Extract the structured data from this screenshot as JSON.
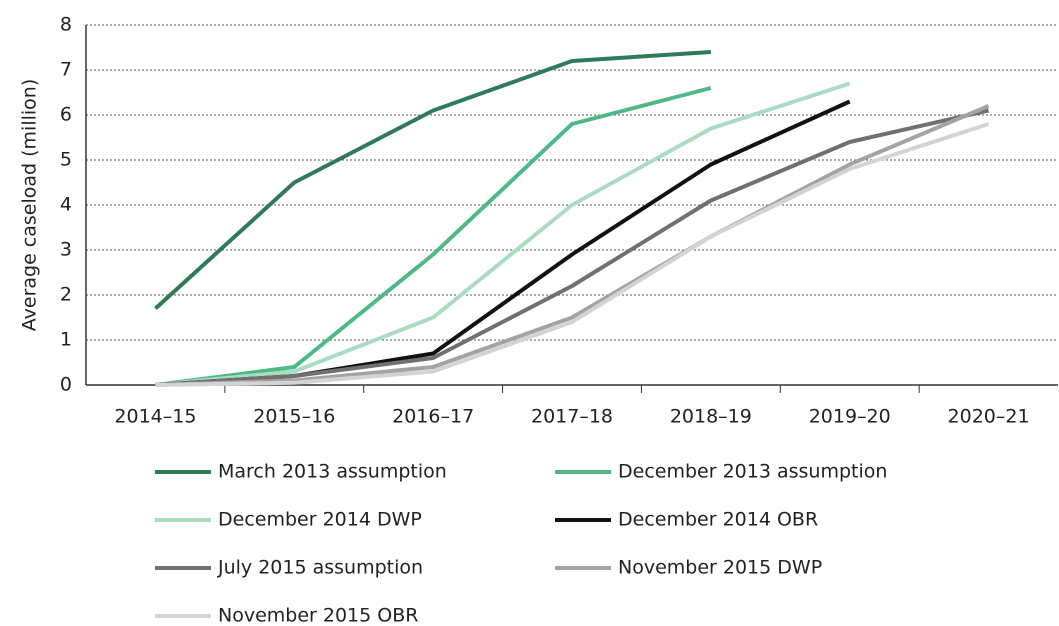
{
  "chart_data": {
    "type": "line",
    "ylabel": "Average caseload (million)",
    "categories": [
      "2014–15",
      "2015–16",
      "2016–17",
      "2017–18",
      "2018–19",
      "2019–20",
      "2020–21"
    ],
    "series": [
      {
        "name": "March 2013 assumption",
        "color": "#2f7a57",
        "values": [
          1.7,
          4.5,
          6.1,
          7.2,
          7.4,
          null,
          null
        ]
      },
      {
        "name": "December 2013 assumption",
        "color": "#4fb985",
        "values": [
          0,
          0.4,
          2.9,
          5.8,
          6.6,
          null,
          null
        ]
      },
      {
        "name": "December 2014 DWP",
        "color": "#aadcc1",
        "values": [
          0,
          0.3,
          1.5,
          4.0,
          5.7,
          6.7,
          null
        ]
      },
      {
        "name": "December 2014 OBR",
        "color": "#111111",
        "values": [
          0,
          0.2,
          0.7,
          2.9,
          4.9,
          6.3,
          null
        ]
      },
      {
        "name": "July 2015 assumption",
        "color": "#707070",
        "values": [
          0,
          0.2,
          0.6,
          2.2,
          4.1,
          5.4,
          6.1
        ]
      },
      {
        "name": "November 2015 DWP",
        "color": "#a3a3a3",
        "values": [
          0,
          0.1,
          0.4,
          1.5,
          3.3,
          4.9,
          6.2
        ]
      },
      {
        "name": "November 2015 OBR",
        "color": "#d3d3d3",
        "values": [
          0,
          0.05,
          0.3,
          1.4,
          3.3,
          4.8,
          5.8
        ]
      }
    ],
    "ylim": [
      0,
      8
    ],
    "yticks": [
      0,
      1,
      2,
      3,
      4,
      5,
      6,
      7,
      8
    ],
    "grid": true
  }
}
